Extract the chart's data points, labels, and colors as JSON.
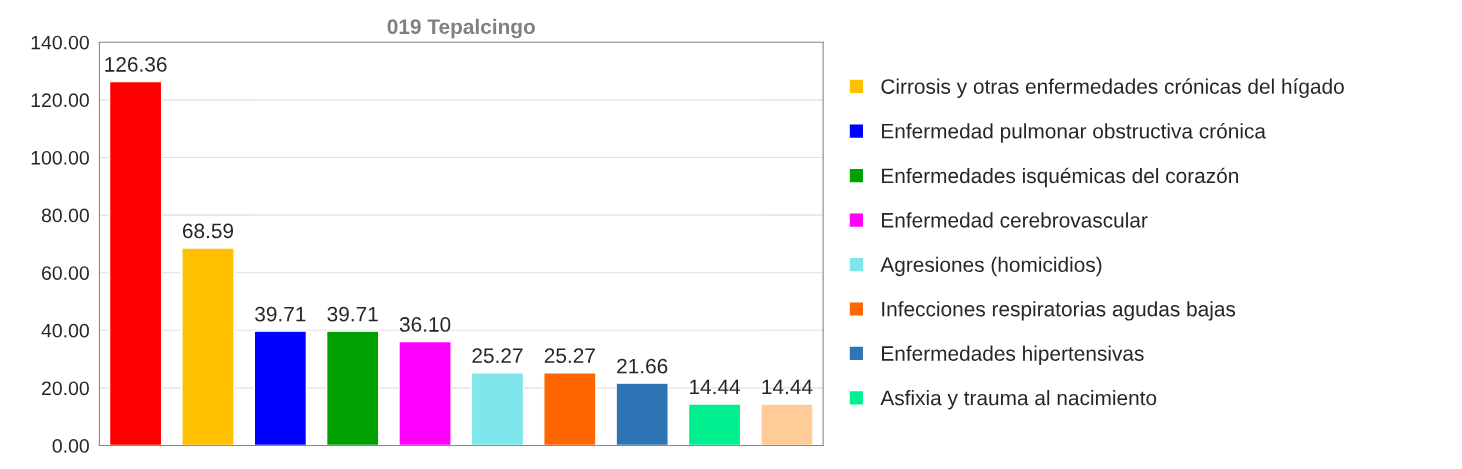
{
  "chart_data": {
    "type": "bar",
    "title": "019 Tepalcingo",
    "categories": [
      null,
      null,
      null,
      null,
      null,
      null,
      null,
      null,
      null,
      null
    ],
    "series": [
      {
        "color": "#ff0000",
        "values": [
          126.36,
          null,
          null,
          null,
          null,
          null,
          null,
          null,
          null,
          null
        ],
        "value_labels": [
          "126.36",
          null,
          null,
          null,
          null,
          null,
          null,
          null,
          null,
          null
        ]
      },
      {
        "name": "Cirrosis y otras enfermedades crónicas del hígado",
        "color": "#ffc000",
        "values": [
          null,
          68.59,
          null,
          null,
          null,
          null,
          null,
          null,
          null,
          null
        ],
        "value_labels": [
          null,
          "68.59",
          null,
          null,
          null,
          null,
          null,
          null,
          null,
          null
        ]
      },
      {
        "name": "Enfermedad pulmonar obstructiva crónica",
        "color": "#0000ff",
        "values": [
          null,
          null,
          39.71,
          null,
          null,
          null,
          null,
          null,
          null,
          null
        ],
        "value_labels": [
          null,
          null,
          "39.71",
          null,
          null,
          null,
          null,
          null,
          null,
          null
        ]
      },
      {
        "name": "Enfermedades isquémicas del corazón",
        "color": "#00a000",
        "values": [
          null,
          null,
          null,
          39.71,
          null,
          null,
          null,
          null,
          null,
          null
        ],
        "value_labels": [
          null,
          null,
          null,
          "39.71",
          null,
          null,
          null,
          null,
          null,
          null
        ]
      },
      {
        "name": "Enfermedad cerebrovascular",
        "color": "#ff00ff",
        "values": [
          null,
          null,
          null,
          null,
          36.1,
          null,
          null,
          null,
          null,
          null
        ],
        "value_labels": [
          null,
          null,
          null,
          null,
          "36.10",
          null,
          null,
          null,
          null,
          null
        ]
      },
      {
        "name": "Agresiones (homicidios)",
        "color": "#7fe6ec",
        "values": [
          null,
          null,
          null,
          null,
          null,
          25.27,
          null,
          null,
          null,
          null
        ],
        "value_labels": [
          null,
          null,
          null,
          null,
          null,
          "25.27",
          null,
          null,
          null,
          null
        ]
      },
      {
        "name": "Infecciones respiratorias agudas bajas",
        "color": "#ff6600",
        "values": [
          null,
          null,
          null,
          null,
          null,
          null,
          25.27,
          null,
          null,
          null
        ],
        "value_labels": [
          null,
          null,
          null,
          null,
          null,
          null,
          "25.27",
          null,
          null,
          null
        ]
      },
      {
        "name": "Enfermedades hipertensivas",
        "color": "#2e75b6",
        "values": [
          null,
          null,
          null,
          null,
          null,
          null,
          null,
          21.66,
          null,
          null
        ],
        "value_labels": [
          null,
          null,
          null,
          null,
          null,
          null,
          null,
          "21.66",
          null,
          null
        ]
      },
      {
        "name": "Asfixia y trauma al nacimiento",
        "color": "#00f090",
        "values": [
          null,
          null,
          null,
          null,
          null,
          null,
          null,
          null,
          14.44,
          null
        ],
        "value_labels": [
          null,
          null,
          null,
          null,
          null,
          null,
          null,
          null,
          "14.44",
          null
        ]
      },
      {
        "color": "#ffcc99",
        "values": [
          null,
          null,
          null,
          null,
          null,
          null,
          null,
          null,
          null,
          14.44
        ],
        "value_labels": [
          null,
          null,
          null,
          null,
          null,
          null,
          null,
          null,
          null,
          "14.44"
        ]
      }
    ],
    "ylim": [
      0,
      140
    ],
    "yticks": [
      {
        "value": 0,
        "label": "0.00"
      },
      {
        "value": 20,
        "label": "20.00"
      },
      {
        "value": 40,
        "label": "40.00"
      },
      {
        "value": 60,
        "label": "60.00"
      },
      {
        "value": 80,
        "label": "80.00"
      },
      {
        "value": 100,
        "label": "100.00"
      },
      {
        "value": 120,
        "label": "120.00"
      },
      {
        "value": 140,
        "label": "140.00"
      }
    ],
    "grid": "y",
    "legend": "right"
  }
}
